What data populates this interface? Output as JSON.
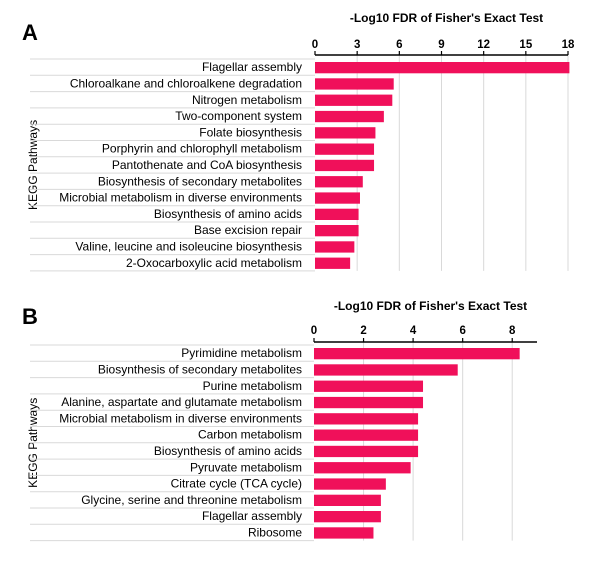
{
  "colors": {
    "bar": "#f0105a",
    "grid": "#d9d9d9",
    "axis": "#000000",
    "sep": "#d9d9d9"
  },
  "chart_data": [
    {
      "panel": "A",
      "type": "bar",
      "orientation": "horizontal",
      "xlabel": "-Log10 FDR of Fisher's Exact Test",
      "ylabel": "KEGG Pathways",
      "xlim": [
        0,
        18
      ],
      "xticks": [
        "0",
        "3",
        "6",
        "9",
        "12",
        "15",
        "18"
      ],
      "x_axis_position": "top",
      "grid": true,
      "categories": [
        "Flagellar assembly",
        "Chloroalkane and chloroalkene degradation",
        "Nitrogen metabolism",
        "Two-component system",
        "Folate biosynthesis",
        "Porphyrin and chlorophyll metabolism",
        "Pantothenate and CoA biosynthesis",
        "Biosynthesis of secondary metabolites",
        "Microbial metabolism in diverse environments",
        "Biosynthesis of amino acids",
        "Base excision repair",
        "Valine, leucine and isoleucine biosynthesis",
        "2-Oxocarboxylic acid metabolism"
      ],
      "values": [
        18.1,
        5.6,
        5.5,
        4.9,
        4.3,
        4.2,
        4.2,
        3.4,
        3.2,
        3.1,
        3.1,
        2.8,
        2.5
      ]
    },
    {
      "panel": "B",
      "type": "bar",
      "orientation": "horizontal",
      "xlabel": "-Log10 FDR of Fisher's Exact Test",
      "ylabel": "KEGG Pathways",
      "xlim": [
        0,
        9
      ],
      "xticks": [
        "0",
        "2",
        "4",
        "6",
        "8"
      ],
      "x_axis_position": "top",
      "grid": true,
      "categories": [
        "Pyrimidine metabolism",
        "Biosynthesis of secondary metabolites",
        "Purine metabolism",
        "Alanine, aspartate and glutamate metabolism",
        "Microbial metabolism in diverse environments",
        "Carbon metabolism",
        "Biosynthesis of amino acids",
        "Pyruvate metabolism",
        "Citrate cycle (TCA cycle)",
        "Glycine, serine and threonine metabolism",
        "Flagellar assembly",
        "Ribosome"
      ],
      "values": [
        8.3,
        5.8,
        4.4,
        4.4,
        4.2,
        4.2,
        4.2,
        3.9,
        2.9,
        2.7,
        2.7,
        2.4
      ]
    }
  ]
}
